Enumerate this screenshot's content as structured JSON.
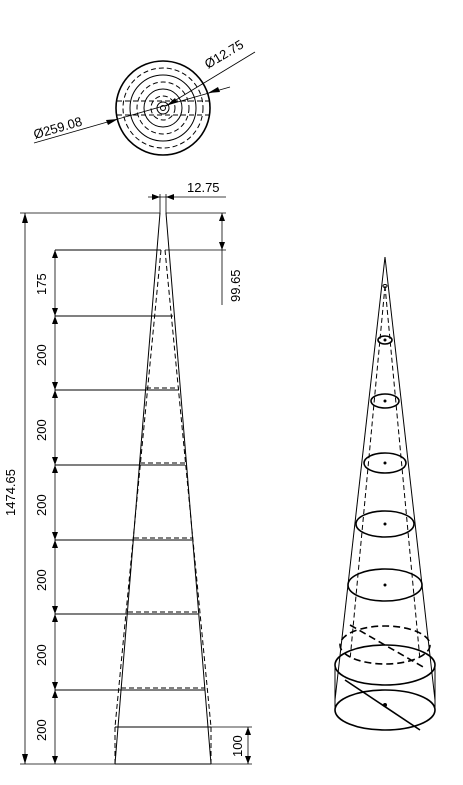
{
  "top_view": {
    "outer_diameter_label": "Ø259.08",
    "inner_diameter_label": "Ø12.75"
  },
  "front_view": {
    "tip_width_label": "12.75",
    "tip_height_label": "99.65",
    "total_height_label": "1474.65",
    "base_height_label": "100",
    "section_labels": [
      "175",
      "200",
      "200",
      "200",
      "200",
      "200",
      "200"
    ]
  }
}
